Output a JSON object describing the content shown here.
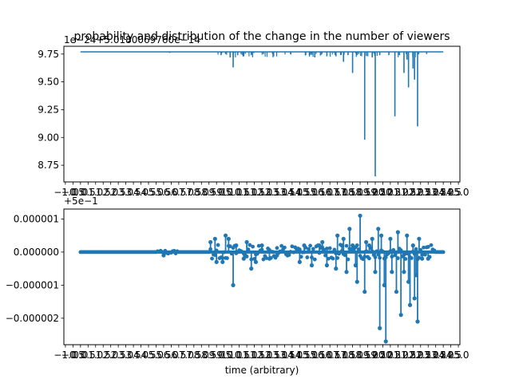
{
  "chart_data": [
    {
      "type": "line",
      "title": "probability and distribution of the change in the number of viewers",
      "xlabel": "",
      "ylabel": "",
      "offset_text": "1e−24+5.0180069760e−14",
      "xlim": [
        -1.1,
        25.1
      ],
      "ylim": [
        8.6,
        9.82
      ],
      "x_tick_labels": [
        "−1.0",
        "−0.5",
        "0.0",
        "0.5",
        "1.0",
        "1.5",
        "2.0",
        "2.5",
        "3.0",
        "3.5",
        "4.0",
        "4.5",
        "5.0",
        "5.5",
        "6.0",
        "6.5",
        "7.0",
        "7.5",
        "8.0",
        "8.5",
        "9.0",
        "9.5",
        "10.0",
        "10.5",
        "11.0",
        "11.5",
        "12.0",
        "12.5",
        "13.0",
        "13.5",
        "14.0",
        "14.5",
        "15.0",
        "15.5",
        "16.0",
        "16.5",
        "17.0",
        "17.5",
        "18.0",
        "18.5",
        "19.0",
        "19.5",
        "20.0",
        "20.5",
        "21.0",
        "21.5",
        "22.0",
        "22.5",
        "23.0",
        "23.5",
        "24.0",
        "24.5",
        "25.0"
      ],
      "y_ticks": [
        8.75,
        9.0,
        9.25,
        9.5,
        9.75
      ],
      "y_tick_labels": [
        "8.75",
        "9.00",
        "9.25",
        "9.50",
        "9.75"
      ],
      "x_ticks": [
        -1.0,
        -0.5,
        0.0,
        0.5,
        1.0,
        1.5,
        2.0,
        2.5,
        3.0,
        3.5,
        4.0,
        4.5,
        5.0,
        5.5,
        6.0,
        6.5,
        7.0,
        7.5,
        8.0,
        8.5,
        9.0,
        9.5,
        10.0,
        10.5,
        11.0,
        11.5,
        12.0,
        12.5,
        13.0,
        13.5,
        14.0,
        14.5,
        15.0,
        15.5,
        16.0,
        16.5,
        17.0,
        17.5,
        18.0,
        18.5,
        19.0,
        19.5,
        20.0,
        20.5,
        21.0,
        21.5,
        22.0,
        22.5,
        23.0,
        23.5,
        24.0,
        24.5,
        25.0
      ],
      "baseline": 9.77,
      "x_range": [
        0.0,
        24.0
      ],
      "series": [
        {
          "color": "#1f77b4",
          "markers": false,
          "dips": [
            [
              5.9,
              9.76
            ],
            [
              9.3,
              9.74
            ],
            [
              9.6,
              9.75
            ],
            [
              9.9,
              9.72
            ],
            [
              10.1,
              9.63
            ],
            [
              10.4,
              9.74
            ],
            [
              10.8,
              9.73
            ],
            [
              11.3,
              9.74
            ],
            [
              12.1,
              9.75
            ],
            [
              13.9,
              9.75
            ],
            [
              14.9,
              9.74
            ],
            [
              15.5,
              9.72
            ],
            [
              15.9,
              9.74
            ],
            [
              16.3,
              9.73
            ],
            [
              16.9,
              9.73
            ],
            [
              17.4,
              9.68
            ],
            [
              17.7,
              9.74
            ],
            [
              18.0,
              9.58
            ],
            [
              18.3,
              9.74
            ],
            [
              18.8,
              8.98
            ],
            [
              19.0,
              9.73
            ],
            [
              19.3,
              9.72
            ],
            [
              19.5,
              8.65
            ],
            [
              19.8,
              9.74
            ],
            [
              20.4,
              9.74
            ],
            [
              20.8,
              9.19
            ],
            [
              21.1,
              9.74
            ],
            [
              21.4,
              9.58
            ],
            [
              21.6,
              9.7
            ],
            [
              21.7,
              9.45
            ],
            [
              22.0,
              9.62
            ],
            [
              22.1,
              9.52
            ],
            [
              22.3,
              9.1
            ],
            [
              22.9,
              9.75
            ]
          ]
        }
      ]
    },
    {
      "type": "scatter",
      "title": "",
      "xlabel": "time (arbitrary)",
      "ylabel": "",
      "offset_text": "+5e−1",
      "xlim": [
        -1.1,
        25.1
      ],
      "ylim": [
        -2.8e-06,
        1.3e-06
      ],
      "x_tick_labels": [
        "−1.0",
        "−0.5",
        "0.0",
        "0.5",
        "1.0",
        "1.5",
        "2.0",
        "2.5",
        "3.0",
        "3.5",
        "4.0",
        "4.5",
        "5.0",
        "5.5",
        "6.0",
        "6.5",
        "7.0",
        "7.5",
        "8.0",
        "8.5",
        "9.0",
        "9.5",
        "10.0",
        "10.5",
        "11.0",
        "11.5",
        "12.0",
        "12.5",
        "13.0",
        "13.5",
        "14.0",
        "14.5",
        "15.0",
        "15.5",
        "16.0",
        "16.5",
        "17.0",
        "17.5",
        "18.0",
        "18.5",
        "19.0",
        "19.5",
        "20.0",
        "20.5",
        "21.0",
        "21.5",
        "22.0",
        "22.5",
        "23.0",
        "23.5",
        "24.0",
        "24.5",
        "25.0"
      ],
      "x_ticks": [
        -1.0,
        -0.5,
        0.0,
        0.5,
        1.0,
        1.5,
        2.0,
        2.5,
        3.0,
        3.5,
        4.0,
        4.5,
        5.0,
        5.5,
        6.0,
        6.5,
        7.0,
        7.5,
        8.0,
        8.5,
        9.0,
        9.5,
        10.0,
        10.5,
        11.0,
        11.5,
        12.0,
        12.5,
        13.0,
        13.5,
        14.0,
        14.5,
        15.0,
        15.5,
        16.0,
        16.5,
        17.0,
        17.5,
        18.0,
        18.5,
        19.0,
        19.5,
        20.0,
        20.5,
        21.0,
        21.5,
        22.0,
        22.5,
        23.0,
        23.5,
        24.0,
        24.5,
        25.0
      ],
      "y_ticks": [
        -2e-06,
        -1e-06,
        0.0,
        1e-06
      ],
      "y_tick_labels": [
        "−0.000002",
        "−0.000001",
        "0.000000",
        "0.000001"
      ],
      "baseline": 0.0,
      "x_range": [
        0.0,
        24.0
      ],
      "series": [
        {
          "color": "#1f77b4",
          "markers": true,
          "spikes": [
            [
              5.5,
              -1e-07
            ],
            [
              8.6,
              3e-07
            ],
            [
              8.9,
              4e-07
            ],
            [
              9.0,
              -3e-07
            ],
            [
              9.4,
              -3e-07
            ],
            [
              9.6,
              5e-07
            ],
            [
              9.8,
              4e-07
            ],
            [
              10.1,
              -1e-06
            ],
            [
              10.3,
              2e-07
            ],
            [
              10.8,
              -2e-07
            ],
            [
              11.0,
              3e-07
            ],
            [
              11.3,
              -5e-07
            ],
            [
              11.6,
              -3e-07
            ],
            [
              12.0,
              2e-07
            ],
            [
              12.5,
              -2e-07
            ],
            [
              13.0,
              -1e-07
            ],
            [
              13.7,
              -1e-07
            ],
            [
              14.5,
              -3e-07
            ],
            [
              14.8,
              2e-07
            ],
            [
              15.3,
              -4e-07
            ],
            [
              15.8,
              2e-07
            ],
            [
              16.0,
              3e-07
            ],
            [
              16.3,
              -4e-07
            ],
            [
              16.9,
              -5e-07
            ],
            [
              17.0,
              5e-07
            ],
            [
              17.3,
              2e-07
            ],
            [
              17.4,
              4e-07
            ],
            [
              17.6,
              -6e-07
            ],
            [
              17.8,
              7e-07
            ],
            [
              18.0,
              2e-07
            ],
            [
              18.2,
              -4e-07
            ],
            [
              18.3,
              -9e-07
            ],
            [
              18.5,
              1.1e-06
            ],
            [
              18.8,
              -1.2e-06
            ],
            [
              18.9,
              3e-07
            ],
            [
              19.1,
              2e-07
            ],
            [
              19.3,
              4e-07
            ],
            [
              19.5,
              -6e-07
            ],
            [
              19.7,
              7e-07
            ],
            [
              19.8,
              -2.3e-06
            ],
            [
              19.9,
              5e-07
            ],
            [
              20.1,
              -1e-06
            ],
            [
              20.2,
              -2.7e-06
            ],
            [
              20.5,
              4e-07
            ],
            [
              20.6,
              -6e-07
            ],
            [
              20.9,
              -1.2e-06
            ],
            [
              21.0,
              6e-07
            ],
            [
              21.2,
              -1.9e-06
            ],
            [
              21.4,
              -6e-07
            ],
            [
              21.6,
              5e-07
            ],
            [
              21.7,
              -9e-07
            ],
            [
              21.8,
              -1.6e-06
            ],
            [
              22.0,
              2e-07
            ],
            [
              22.1,
              -1.4e-06
            ],
            [
              22.2,
              -7e-07
            ],
            [
              22.3,
              -2.1e-06
            ],
            [
              22.4,
              4e-07
            ],
            [
              22.6,
              -2e-07
            ],
            [
              23.0,
              -2e-07
            ]
          ]
        }
      ]
    }
  ]
}
